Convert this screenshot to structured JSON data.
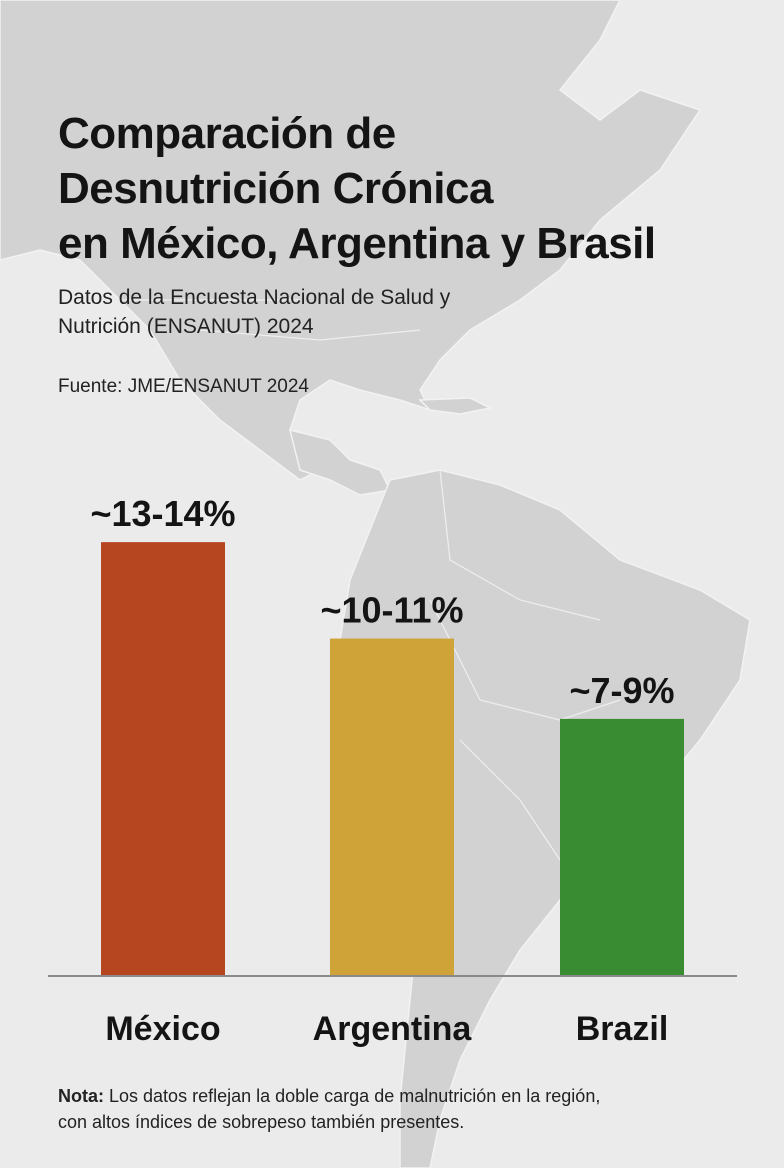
{
  "header": {
    "title_lines": [
      "Comparación de",
      "Desnutrición Crónica",
      "en México, Argentina y Brasil"
    ],
    "subtitle_lines": [
      "Datos de la Encuesta Nacional de Salud y",
      "Nutrición (ENSANUT) 2024"
    ],
    "source": "Fuente: JME/ENSANUT 2024"
  },
  "chart_data": {
    "type": "bar",
    "categories": [
      "México",
      "Argentina",
      "Brazil"
    ],
    "values": [
      13.5,
      10.5,
      8
    ],
    "value_labels": [
      "~13-14%",
      "~10-11%",
      "~7-9%"
    ],
    "colors": [
      "#b5461f",
      "#cfa337",
      "#3a8c33"
    ],
    "title": "Comparación de Desnutrición Crónica en México, Argentina y Brasil",
    "xlabel": "",
    "ylabel": "",
    "ylim": [
      0,
      14.5
    ],
    "grid": false,
    "legend": "none"
  },
  "note": {
    "label": "Nota:",
    "text_lines": [
      "Los datos reflejan la doble carga de malnutrición en la región,",
      "con altos índices de sobrepeso también presentes."
    ]
  }
}
